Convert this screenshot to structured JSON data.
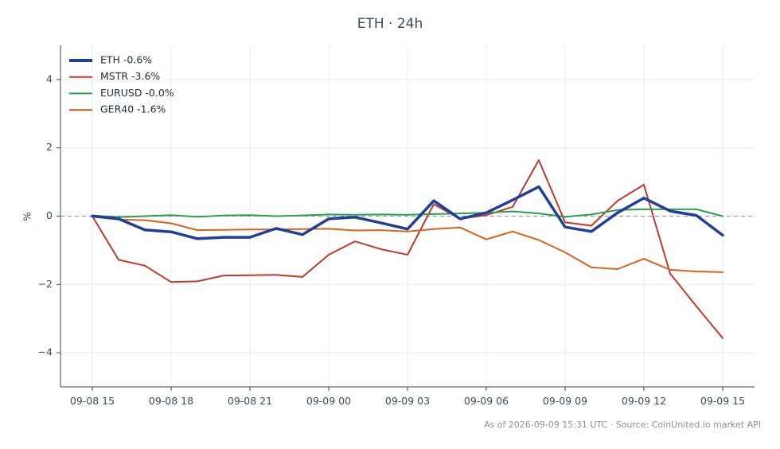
{
  "chart_data": {
    "type": "line",
    "title": "ETH · 24h",
    "ylabel": "%",
    "xlabel": "",
    "ylim": [
      -5,
      5
    ],
    "yticks": [
      -4,
      -2,
      0,
      2,
      4
    ],
    "ytick_labels": [
      "−4",
      "−2",
      "0",
      "2",
      "4"
    ],
    "x_tick_labels": [
      "09-08 15",
      "09-08 18",
      "09-08 21",
      "09-09 00",
      "09-09 03",
      "09-09 06",
      "09-09 09",
      "09-09 12",
      "09-09 15"
    ],
    "x_tick_index": [
      0,
      3,
      6,
      9,
      12,
      15,
      18,
      21,
      24
    ],
    "x": [
      "09-08 15",
      "09-08 16",
      "09-08 17",
      "09-08 18",
      "09-08 19",
      "09-08 20",
      "09-08 21",
      "09-08 22",
      "09-08 23",
      "09-09 00",
      "09-09 01",
      "09-09 02",
      "09-09 03",
      "09-09 04",
      "09-09 05",
      "09-09 06",
      "09-09 07",
      "09-09 08",
      "09-09 09",
      "09-09 10",
      "09-09 11",
      "09-09 12",
      "09-09 13",
      "09-09 14",
      "09-09 15"
    ],
    "grid": true,
    "zero_line": true,
    "legend_position": "top-left",
    "series": [
      {
        "name": "ETH -0.6%",
        "color": "#1f3f99",
        "width": "thick",
        "values": [
          0.0,
          -0.08,
          -0.4,
          -0.46,
          -0.66,
          -0.62,
          -0.62,
          -0.36,
          -0.54,
          -0.08,
          -0.03,
          -0.2,
          -0.38,
          0.45,
          -0.08,
          0.1,
          0.47,
          0.86,
          -0.32,
          -0.45,
          0.1,
          0.53,
          0.15,
          0.02,
          -0.56
        ]
      },
      {
        "name": "MSTR -3.6%",
        "color": "#c0392b",
        "width": "normal",
        "values": [
          0.0,
          -1.28,
          -1.45,
          -1.93,
          -1.91,
          -1.74,
          -1.73,
          -1.72,
          -1.78,
          -1.13,
          -0.74,
          -0.97,
          -1.13,
          0.35,
          -0.08,
          0.03,
          0.27,
          1.64,
          -0.18,
          -0.28,
          0.45,
          0.92,
          -1.68,
          -2.64,
          -3.57
        ]
      },
      {
        "name": "EURUSD -0.0%",
        "color": "#2e9e4f",
        "width": "normal",
        "values": [
          0.02,
          -0.03,
          0.0,
          0.03,
          -0.02,
          0.02,
          0.03,
          0.0,
          0.02,
          0.05,
          0.04,
          0.05,
          0.04,
          0.06,
          0.08,
          0.1,
          0.14,
          0.08,
          -0.02,
          0.05,
          0.18,
          0.2,
          0.2,
          0.2,
          0.0
        ]
      },
      {
        "name": "GER40 -1.6%",
        "color": "#d9621c",
        "width": "normal",
        "values": [
          0.0,
          -0.1,
          -0.12,
          -0.21,
          -0.41,
          -0.4,
          -0.39,
          -0.39,
          -0.38,
          -0.37,
          -0.42,
          -0.41,
          -0.45,
          -0.38,
          -0.33,
          -0.68,
          -0.45,
          -0.7,
          -1.06,
          -1.5,
          -1.55,
          -1.25,
          -1.57,
          -1.62,
          -1.64
        ]
      }
    ]
  },
  "footer": "As of 2026-09-09 15:31 UTC · Source: CoinUnited.io market API"
}
